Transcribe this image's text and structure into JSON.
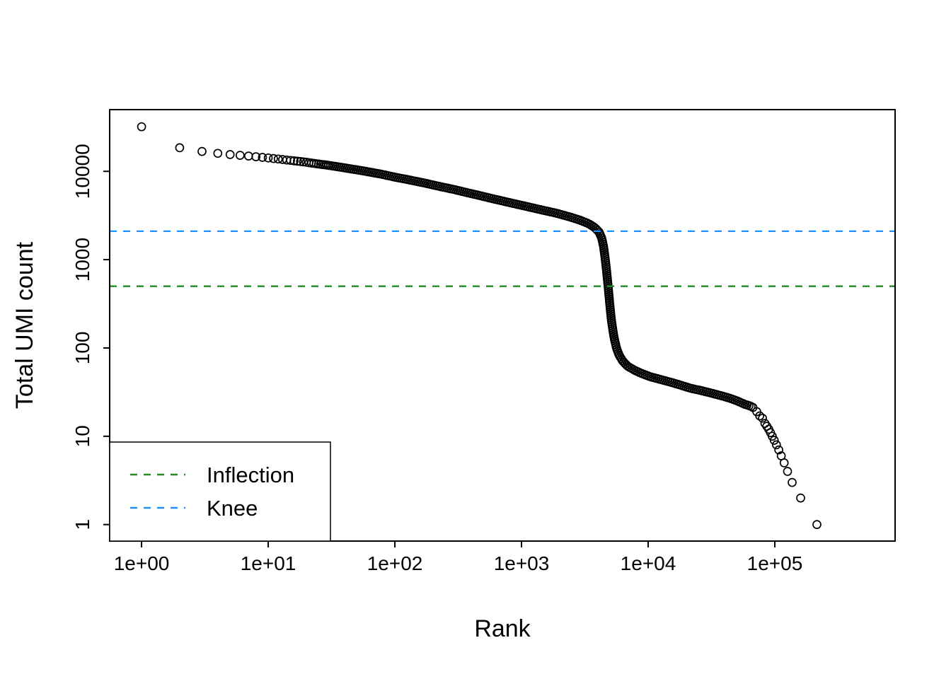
{
  "figure": {
    "background": "#ffffff",
    "foreground": "#000000"
  },
  "chart_data": {
    "type": "scatter",
    "title": "",
    "xlabel": "Rank",
    "ylabel": "Total UMI count",
    "x_scale": "log10",
    "y_scale": "log10",
    "xlim": [
      0.56,
      891000
    ],
    "ylim": [
      0.65,
      50000
    ],
    "grid": "off",
    "x_ticks": [
      {
        "value": 1,
        "label": "1e+00"
      },
      {
        "value": 10,
        "label": "1e+01"
      },
      {
        "value": 100,
        "label": "1e+02"
      },
      {
        "value": 1000,
        "label": "1e+03"
      },
      {
        "value": 10000,
        "label": "1e+04"
      },
      {
        "value": 100000,
        "label": "1e+05"
      }
    ],
    "y_ticks": [
      {
        "value": 1,
        "label": "1"
      },
      {
        "value": 10,
        "label": "10"
      },
      {
        "value": 100,
        "label": "100"
      },
      {
        "value": 1000,
        "label": "1000"
      },
      {
        "value": 10000,
        "label": "10000"
      }
    ],
    "marker": {
      "shape": "open-circle",
      "color": "#000000"
    },
    "head_ranks_max": 30,
    "curve_anchors": [
      [
        1,
        32000
      ],
      [
        2,
        18500
      ],
      [
        3,
        16800
      ],
      [
        4,
        16000
      ],
      [
        5,
        15500
      ],
      [
        6,
        15200
      ],
      [
        7,
        14900
      ],
      [
        8,
        14650
      ],
      [
        9,
        14400
      ],
      [
        10,
        14200
      ],
      [
        12,
        13800
      ],
      [
        15,
        13300
      ],
      [
        19,
        12800
      ],
      [
        24,
        12200
      ],
      [
        30,
        11700
      ],
      [
        38,
        11100
      ],
      [
        48,
        10500
      ],
      [
        60,
        9950
      ],
      [
        78,
        9300
      ],
      [
        100,
        8600
      ],
      [
        130,
        8000
      ],
      [
        170,
        7400
      ],
      [
        220,
        6800
      ],
      [
        290,
        6250
      ],
      [
        380,
        5700
      ],
      [
        500,
        5200
      ],
      [
        650,
        4750
      ],
      [
        850,
        4350
      ],
      [
        1100,
        4000
      ],
      [
        1450,
        3650
      ],
      [
        1900,
        3350
      ],
      [
        2400,
        3050
      ],
      [
        2900,
        2800
      ],
      [
        3400,
        2550
      ],
      [
        3800,
        2300
      ],
      [
        4100,
        2050
      ],
      [
        4300,
        1750
      ],
      [
        4450,
        1400
      ],
      [
        4570,
        1050
      ],
      [
        4680,
        780
      ],
      [
        4790,
        560
      ],
      [
        4900,
        400
      ],
      [
        5000,
        290
      ],
      [
        5120,
        210
      ],
      [
        5260,
        160
      ],
      [
        5420,
        125
      ],
      [
        5620,
        100
      ],
      [
        5900,
        83
      ],
      [
        6300,
        71
      ],
      [
        6900,
        62
      ],
      [
        7800,
        56
      ],
      [
        9000,
        51
      ],
      [
        10500,
        47
      ],
      [
        12500,
        44
      ],
      [
        15000,
        41
      ],
      [
        18000,
        38
      ],
      [
        21500,
        35
      ],
      [
        26000,
        33
      ],
      [
        31000,
        31
      ],
      [
        37000,
        29
      ],
      [
        44000,
        27
      ],
      [
        51000,
        25
      ],
      [
        58000,
        23
      ],
      [
        64000,
        22
      ],
      [
        68000,
        21
      ]
    ],
    "tail_points": [
      [
        72000,
        19
      ],
      [
        76000,
        17
      ],
      [
        80000,
        16
      ],
      [
        83500,
        14
      ],
      [
        86500,
        13
      ],
      [
        89500,
        12
      ],
      [
        92500,
        11
      ],
      [
        95500,
        10
      ],
      [
        99000,
        9
      ],
      [
        103000,
        8
      ],
      [
        107500,
        7
      ],
      [
        112500,
        6
      ],
      [
        118500,
        5
      ],
      [
        126000,
        4
      ],
      [
        137000,
        3
      ],
      [
        160000,
        2
      ],
      [
        215000,
        1
      ]
    ],
    "reference_lines": [
      {
        "name": "inflection",
        "value": 500,
        "color": "#228B22",
        "style": "dashed"
      },
      {
        "name": "knee",
        "value": 2100,
        "color": "#1E90FF",
        "style": "dashed"
      }
    ],
    "legend": {
      "position": "bottom-left",
      "entries": [
        {
          "label": "Inflection",
          "color": "#228B22",
          "line": "dashed"
        },
        {
          "label": "Knee",
          "color": "#1E90FF",
          "line": "dashed"
        }
      ]
    }
  }
}
